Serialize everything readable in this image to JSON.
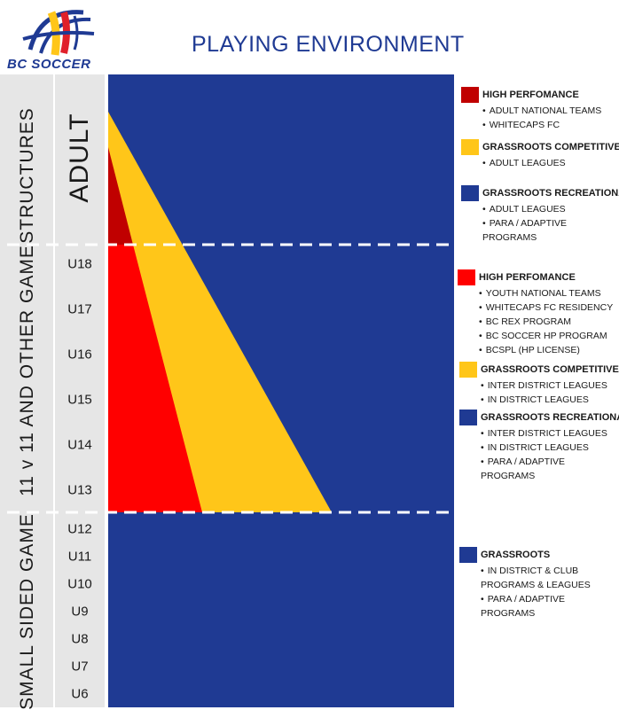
{
  "logo": {
    "text": "BC SOCCER"
  },
  "title": "PLAYING ENVIRONMENT",
  "colors": {
    "blue": "#1f3a93",
    "yellow": "#ffc619",
    "red": "#ff0000",
    "dark_red": "#c00000",
    "panel_gray": "#e6e6e6",
    "divider": "#ffffff"
  },
  "sections": [
    {
      "label": "STRUCTURES",
      "sub_label": "ADULT"
    },
    {
      "label": "11 v 11 AND OTHER GAME"
    },
    {
      "label": "SMALL SIDED GAME"
    }
  ],
  "ages": [
    "U18",
    "U17",
    "U16",
    "U15",
    "U14",
    "U13",
    "U12",
    "U11",
    "U10",
    "U9",
    "U8",
    "U7",
    "U6"
  ],
  "legend": [
    {
      "title": "HIGH PERFOMANCE",
      "swatch": "#c00000",
      "items": [
        {
          "text": "ADULT NATIONAL TEAMS"
        },
        {
          "text": "WHITECAPS FC"
        }
      ]
    },
    {
      "title": "GRASSROOTS COMPETITIVE",
      "swatch": "#ffc619",
      "items": [
        {
          "text": "ADULT LEAGUES"
        }
      ]
    },
    {
      "title": "GRASSROOTS RECREATIONAL",
      "swatch": "#1f3a93",
      "items": [
        {
          "text": "ADULT LEAGUES"
        },
        {
          "text": "PARA / ADAPTIVE",
          "cont": "PROGRAMS"
        }
      ]
    },
    {
      "title": "HIGH PERFOMANCE",
      "swatch": "#ff0000",
      "items": [
        {
          "text": "YOUTH NATIONAL TEAMS"
        },
        {
          "text": "WHITECAPS FC RESIDENCY"
        },
        {
          "text": "BC REX PROGRAM"
        },
        {
          "text": "BC SOCCER HP PROGRAM"
        },
        {
          "text": "BCSPL (HP LICENSE)"
        }
      ]
    },
    {
      "title": "GRASSROOTS COMPETITIVE",
      "swatch": "#ffc619",
      "items": [
        {
          "text": "INTER DISTRICT LEAGUES"
        },
        {
          "text": "IN DISTRICT LEAGUES"
        }
      ]
    },
    {
      "title": "GRASSROOTS RECREATIONAL",
      "swatch": "#1f3a93",
      "items": [
        {
          "text": "INTER DISTRICT LEAGUES"
        },
        {
          "text": "IN DISTRICT LEAGUES"
        },
        {
          "text": "PARA / ADAPTIVE",
          "cont": "PROGRAMS"
        }
      ]
    },
    {
      "title": "GRASSROOTS",
      "swatch": "#1f3a93",
      "items": [
        {
          "text": "IN DISTRICT & CLUB",
          "cont": "PROGRAMS & LEAGUES"
        },
        {
          "text": "PARA / ADAPTIVE",
          "cont": "PROGRAMS"
        }
      ]
    }
  ]
}
